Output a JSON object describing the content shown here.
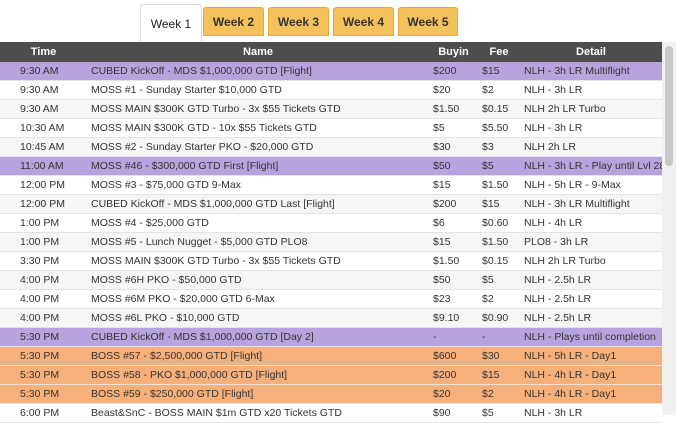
{
  "tabs": [
    {
      "label": "Week 1",
      "active": true
    },
    {
      "label": "Week 2",
      "active": false
    },
    {
      "label": "Week 3",
      "active": false
    },
    {
      "label": "Week 4",
      "active": false
    },
    {
      "label": "Week 5",
      "active": false
    }
  ],
  "columns": {
    "time": "Time",
    "name": "Name",
    "buyin": "Buyin",
    "fee": "Fee",
    "detail": "Detail"
  },
  "rows": [
    {
      "time": "9:30 AM",
      "name": "CUBED KickOff - MDS $1,000,000 GTD [Flight]",
      "buyin": "$200",
      "fee": "$15",
      "detail": "NLH - 3h LR Multiflight",
      "style": "purple"
    },
    {
      "time": "9:30 AM",
      "name": "MOSS #1 - Sunday Starter $10,000 GTD",
      "buyin": "$20",
      "fee": "$2",
      "detail": "NLH - 3h LR",
      "style": "white"
    },
    {
      "time": "9:30 AM",
      "name": "MOSS MAIN $300K GTD Turbo - 3x $55 Tickets GTD",
      "buyin": "$1.50",
      "fee": "$0.15",
      "detail": "NLH 2h LR Turbo",
      "style": "alt"
    },
    {
      "time": "10:30 AM",
      "name": "MOSS MAIN $300K GTD - 10x $55 Tickets GTD",
      "buyin": "$5",
      "fee": "$5.50",
      "detail": "NLH - 3h LR",
      "style": "white"
    },
    {
      "time": "10:45 AM",
      "name": "MOSS #2 - Sunday Starter PKO - $20,000 GTD",
      "buyin": "$30",
      "fee": "$3",
      "detail": "NLH 2h LR",
      "style": "alt"
    },
    {
      "time": "11:00 AM",
      "name": "MOSS #46 - $300,000 GTD First [Flight]",
      "buyin": "$50",
      "fee": "$5",
      "detail": "NLH - 3h LR - Play until Lvl 28",
      "style": "purple"
    },
    {
      "time": "12:00 PM",
      "name": "MOSS #3 - $75,000 GTD 9-Max",
      "buyin": "$15",
      "fee": "$1.50",
      "detail": "NLH - 5h LR - 9-Max",
      "style": "white"
    },
    {
      "time": "12:00 PM",
      "name": "CUBED KickOff - MDS $1,000,000 GTD Last [Flight]",
      "buyin": "$200",
      "fee": "$15",
      "detail": "NLH - 3h LR Multiflight",
      "style": "alt"
    },
    {
      "time": "1:00 PM",
      "name": "MOSS #4 - $25,000 GTD",
      "buyin": "$6",
      "fee": "$0.60",
      "detail": "NLH - 4h LR",
      "style": "white"
    },
    {
      "time": "1:00 PM",
      "name": "MOSS #5 - Lunch Nugget - $5,000 GTD PLO8",
      "buyin": "$15",
      "fee": "$1.50",
      "detail": "PLO8 - 3h LR",
      "style": "alt"
    },
    {
      "time": "3:30 PM",
      "name": "MOSS MAIN $300K GTD Turbo - 3x $55 Tickets GTD",
      "buyin": "$1.50",
      "fee": "$0.15",
      "detail": "NLH 2h LR Turbo",
      "style": "white"
    },
    {
      "time": "4:00 PM",
      "name": "MOSS #6H PKO - $50,000 GTD",
      "buyin": "$50",
      "fee": "$5",
      "detail": "NLH - 2.5h LR",
      "style": "alt"
    },
    {
      "time": "4:00 PM",
      "name": "MOSS #6M PKO - $20,000 GTD 6-Max",
      "buyin": "$23",
      "fee": "$2",
      "detail": "NLH - 2.5h LR",
      "style": "white"
    },
    {
      "time": "4:00 PM",
      "name": "MOSS #6L PKO - $10,000 GTD",
      "buyin": "$9.10",
      "fee": "$0.90",
      "detail": "NLH - 2.5h LR",
      "style": "alt"
    },
    {
      "time": "5:30 PM",
      "name": "CUBED KickOff - MDS $1,000,000 GTD [Day 2]",
      "buyin": "-",
      "fee": "-",
      "detail": "NLH - Plays until completion",
      "style": "purple"
    },
    {
      "time": "5:30 PM",
      "name": "BOSS #57 - $2,500,000 GTD [Flight]",
      "buyin": "$600",
      "fee": "$30",
      "detail": "NLH - 5h LR - Day1",
      "style": "orange"
    },
    {
      "time": "5:30 PM",
      "name": "BOSS #58 - PKO $1,000,000 GTD [Flight]",
      "buyin": "$200",
      "fee": "$15",
      "detail": "NLH - 4h LR - Day1",
      "style": "orange"
    },
    {
      "time": "5:30 PM",
      "name": "BOSS #59 - $250,000 GTD [Flight]",
      "buyin": "$20",
      "fee": "$2",
      "detail": "NLH - 4h LR - Day1",
      "style": "orange"
    },
    {
      "time": "6:00 PM",
      "name": "Beast&SnC - BOSS MAIN $1m GTD x20 Tickets GTD",
      "buyin": "$90",
      "fee": "$5",
      "detail": "NLH - 3h LR",
      "style": "white"
    }
  ]
}
